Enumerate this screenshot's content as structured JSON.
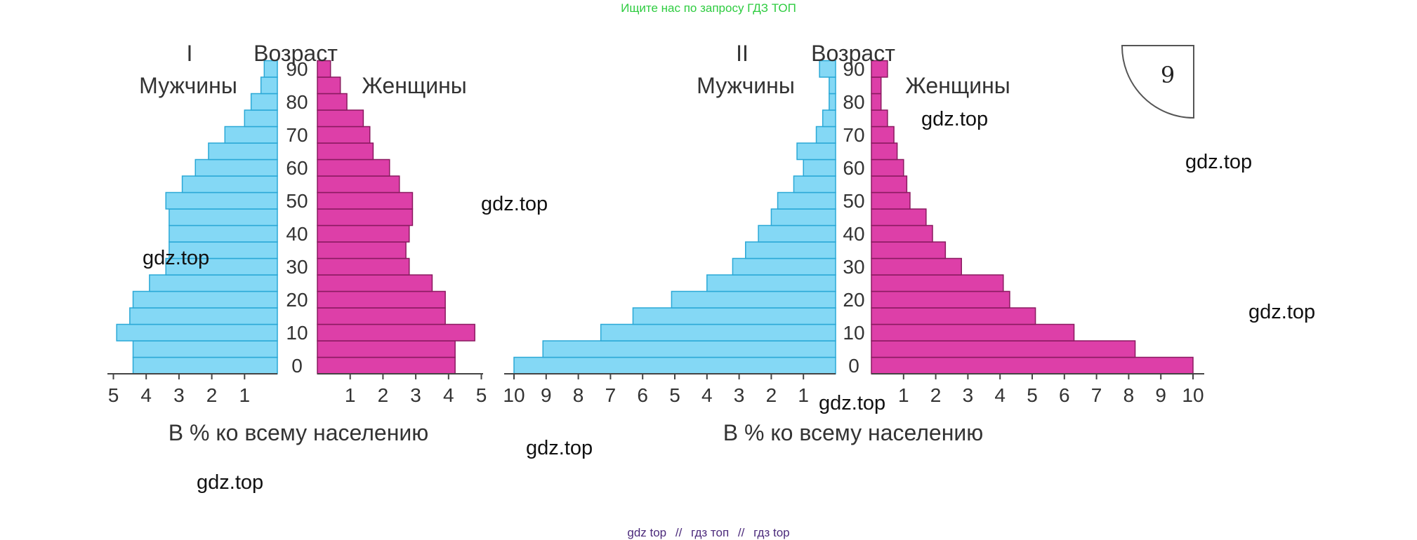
{
  "header": {
    "link_text": "Ищите нас по запросу ГДЗ ТОП"
  },
  "footer": {
    "links": [
      "gdz top",
      "гдз топ",
      "гдз top"
    ],
    "separator": "//"
  },
  "page_badge": {
    "number": "9"
  },
  "watermarks": [
    "gdz.top",
    "gdz.top",
    "gdz.top",
    "gdz.top",
    "gdz.top",
    "gdz.top",
    "gdz.top",
    "gdz.top"
  ],
  "colors": {
    "male": "#84d8f5",
    "male_stroke": "#2aa8d6",
    "female": "#dd3fa8",
    "female_stroke": "#8a1a60"
  },
  "chart_data": [
    {
      "type": "bar",
      "orientation": "horizontal-pyramid",
      "title": "I",
      "age_label": "Возраст",
      "male_label": "Мужчины",
      "female_label": "Женщины",
      "xlabel": "В % ко всему населению",
      "age_groups": [
        "0–4",
        "5–9",
        "10–14",
        "15–19",
        "20–24",
        "25–29",
        "30–34",
        "35–39",
        "40–44",
        "45–49",
        "50–54",
        "55–59",
        "60–64",
        "65–69",
        "70–74",
        "75–79",
        "80–84",
        "85–89",
        "90+"
      ],
      "age_ticks": [
        "0",
        "10",
        "20",
        "30",
        "40",
        "50",
        "60",
        "70",
        "80",
        "90"
      ],
      "male_ticks": [
        "5",
        "4",
        "3",
        "2",
        "1"
      ],
      "female_ticks": [
        "1",
        "2",
        "3",
        "4",
        "5"
      ],
      "xlim": [
        0,
        5
      ],
      "series": [
        {
          "name": "Мужчины",
          "values": [
            4.4,
            4.4,
            4.9,
            4.5,
            4.4,
            3.9,
            3.4,
            3.3,
            3.3,
            3.3,
            3.4,
            2.9,
            2.5,
            2.1,
            1.6,
            1.0,
            0.8,
            0.5,
            0.4
          ]
        },
        {
          "name": "Женщины",
          "values": [
            4.2,
            4.2,
            4.8,
            3.9,
            3.9,
            3.5,
            2.8,
            2.7,
            2.8,
            2.9,
            2.9,
            2.5,
            2.2,
            1.7,
            1.6,
            1.4,
            0.9,
            0.7,
            0.4
          ]
        }
      ]
    },
    {
      "type": "bar",
      "orientation": "horizontal-pyramid",
      "title": "II",
      "age_label": "Возраст",
      "male_label": "Мужчины",
      "female_label": "Женщины",
      "xlabel": "В % ко всему населению",
      "age_groups": [
        "0–4",
        "5–9",
        "10–14",
        "15–19",
        "20–24",
        "25–29",
        "30–34",
        "35–39",
        "40–44",
        "45–49",
        "50–54",
        "55–59",
        "60–64",
        "65–69",
        "70–74",
        "75–79",
        "80–84",
        "85–89",
        "90+"
      ],
      "age_ticks": [
        "0",
        "10",
        "20",
        "30",
        "40",
        "50",
        "60",
        "70",
        "80",
        "90"
      ],
      "male_ticks": [
        "10",
        "9",
        "8",
        "7",
        "6",
        "5",
        "4",
        "3",
        "2",
        "1"
      ],
      "female_ticks": [
        "1",
        "2",
        "3",
        "4",
        "5",
        "6",
        "7",
        "8",
        "9",
        "10"
      ],
      "xlim": [
        0,
        10
      ],
      "series": [
        {
          "name": "Мужчины",
          "values": [
            10.0,
            9.1,
            7.3,
            6.3,
            5.1,
            4.0,
            3.2,
            2.8,
            2.4,
            2.0,
            1.8,
            1.3,
            1.0,
            1.2,
            0.6,
            0.4,
            0.2,
            0.2,
            0.5
          ]
        },
        {
          "name": "Женщины",
          "values": [
            10.0,
            8.2,
            6.3,
            5.1,
            4.3,
            4.1,
            2.8,
            2.3,
            1.9,
            1.7,
            1.2,
            1.1,
            1.0,
            0.8,
            0.7,
            0.5,
            0.3,
            0.3,
            0.5
          ]
        }
      ]
    }
  ]
}
